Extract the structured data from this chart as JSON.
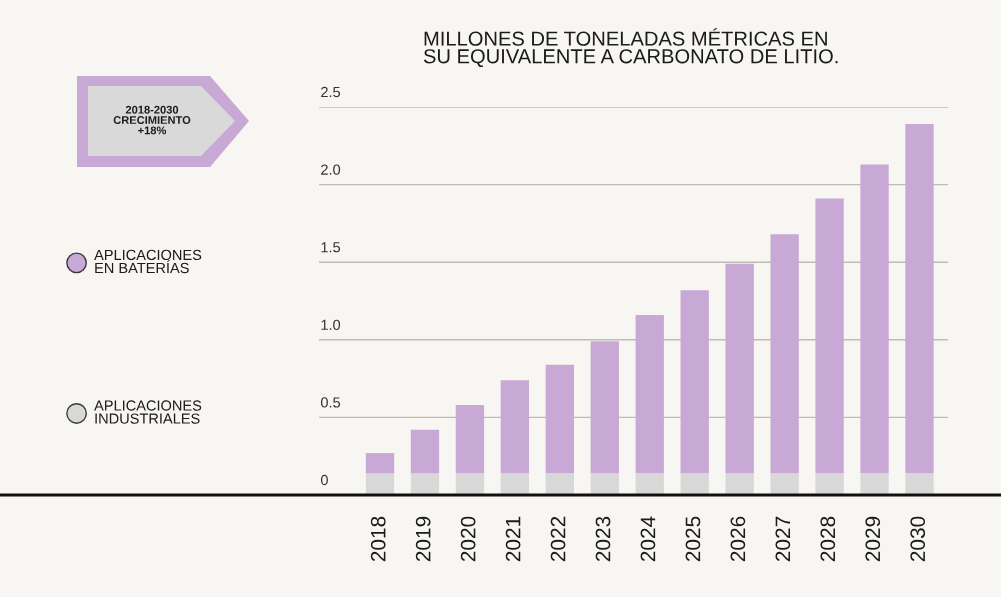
{
  "chart_data": {
    "type": "bar",
    "title": "MILLONES DE TONELADAS MÉTRICAS EN\nSU EQUIVALENTE A CARBONATO DE LITIO.",
    "categories": [
      "2018",
      "2019",
      "2020",
      "2021",
      "2022",
      "2023",
      "2024",
      "2025",
      "2026",
      "2027",
      "2028",
      "2029",
      "2030"
    ],
    "stacked": true,
    "series": [
      {
        "name": "APLICACIONES\nINDUSTRIALES",
        "color": "#d8d8d8",
        "values": [
          0.14,
          0.14,
          0.14,
          0.14,
          0.14,
          0.14,
          0.14,
          0.14,
          0.14,
          0.14,
          0.14,
          0.14,
          0.14
        ]
      },
      {
        "name": "APLICACIONES\nEN BATERÍAS",
        "color": "#c8a8d4",
        "values": [
          0.13,
          0.28,
          0.44,
          0.6,
          0.7,
          0.85,
          1.02,
          1.18,
          1.35,
          1.54,
          1.77,
          1.99,
          2.25
        ]
      }
    ],
    "ylim": [
      0,
      2.5
    ],
    "yticks": [
      0,
      0.5,
      {
        "value": 1,
        "label": "1.0"
      },
      1.5,
      {
        "value": 2,
        "label": "2.0"
      },
      2.5
    ],
    "grid": "y",
    "legend": "left",
    "annotations": [
      "2018-2030\nCRECIMIENTO\n+18%"
    ]
  }
}
